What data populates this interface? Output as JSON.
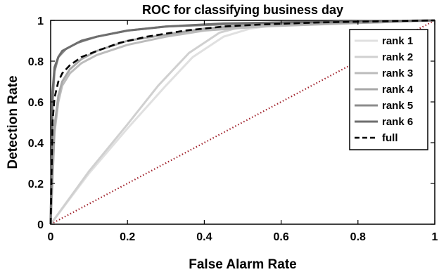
{
  "chart_data": {
    "type": "line",
    "title": "ROC for classifying business day",
    "xlabel": "False Alarm Rate",
    "ylabel": "Detection Rate",
    "xlim": [
      0,
      1
    ],
    "ylim": [
      0,
      1
    ],
    "xticks": [
      0,
      0.2,
      0.4,
      0.6,
      0.8,
      1
    ],
    "yticks": [
      0,
      0.2,
      0.4,
      0.6,
      0.8,
      1
    ],
    "xtick_labels": [
      "0",
      "0.2",
      "0.4",
      "0.6",
      "0.8",
      "1"
    ],
    "ytick_labels": [
      "0",
      "0.2",
      "0.4",
      "0.6",
      "0.8",
      "1"
    ],
    "grid": false,
    "legend_position": "top-right",
    "series": [
      {
        "name": "rank 1",
        "color": "#e0e0e0",
        "line_style": "solid",
        "x": [
          0,
          0.1,
          0.2,
          0.3,
          0.37,
          0.45,
          0.52,
          0.6,
          0.8,
          1
        ],
        "y": [
          0,
          0.25,
          0.47,
          0.68,
          0.82,
          0.92,
          0.96,
          0.98,
          0.99,
          1
        ]
      },
      {
        "name": "rank 2",
        "color": "#d0d0d0",
        "line_style": "solid",
        "x": [
          0,
          0.1,
          0.2,
          0.28,
          0.36,
          0.44,
          0.5,
          0.6,
          0.8,
          1
        ],
        "y": [
          0,
          0.26,
          0.49,
          0.68,
          0.84,
          0.94,
          0.97,
          0.98,
          0.99,
          1
        ]
      },
      {
        "name": "rank 3",
        "color": "#bcbcbc",
        "line_style": "solid",
        "x": [
          0,
          0.01,
          0.02,
          0.03,
          0.05,
          0.08,
          0.12,
          0.2,
          0.3,
          0.4,
          0.55,
          0.7,
          0.85,
          1
        ],
        "y": [
          0,
          0.45,
          0.6,
          0.68,
          0.74,
          0.79,
          0.83,
          0.88,
          0.92,
          0.95,
          0.97,
          0.98,
          0.99,
          1
        ]
      },
      {
        "name": "rank 4",
        "color": "#a8a8a8",
        "line_style": "solid",
        "x": [
          0,
          0.01,
          0.02,
          0.03,
          0.05,
          0.08,
          0.12,
          0.2,
          0.3,
          0.4,
          0.55,
          0.7,
          0.85,
          1
        ],
        "y": [
          0,
          0.48,
          0.63,
          0.7,
          0.76,
          0.81,
          0.85,
          0.9,
          0.93,
          0.96,
          0.98,
          0.985,
          0.99,
          1
        ]
      },
      {
        "name": "rank 5",
        "color": "#8c8c8c",
        "line_style": "solid",
        "x": [
          0,
          0.005,
          0.01,
          0.02,
          0.04,
          0.07,
          0.12,
          0.2,
          0.3,
          0.45,
          0.6,
          0.8,
          1
        ],
        "y": [
          0,
          0.6,
          0.75,
          0.82,
          0.86,
          0.89,
          0.92,
          0.95,
          0.97,
          0.98,
          0.99,
          0.995,
          1
        ]
      },
      {
        "name": "rank 6",
        "color": "#6e6e6e",
        "line_style": "solid",
        "x": [
          0,
          0.005,
          0.01,
          0.02,
          0.03,
          0.05,
          0.08,
          0.12,
          0.2,
          0.3,
          0.45,
          0.6,
          0.8,
          1
        ],
        "y": [
          0,
          0.65,
          0.77,
          0.82,
          0.85,
          0.87,
          0.9,
          0.92,
          0.95,
          0.97,
          0.985,
          0.99,
          0.995,
          1
        ]
      },
      {
        "name": "full",
        "color": "#000000",
        "line_style": "dashed",
        "x": [
          0,
          0.005,
          0.01,
          0.02,
          0.03,
          0.05,
          0.08,
          0.12,
          0.18,
          0.25,
          0.35,
          0.45,
          0.55,
          0.7,
          0.85,
          1
        ],
        "y": [
          0,
          0.5,
          0.62,
          0.7,
          0.74,
          0.78,
          0.82,
          0.85,
          0.89,
          0.92,
          0.95,
          0.97,
          0.98,
          0.99,
          0.995,
          1
        ]
      }
    ],
    "reference_line": {
      "x": [
        0,
        1
      ],
      "y": [
        0,
        1
      ],
      "color": "#a0202a",
      "line_style": "dotted"
    }
  }
}
